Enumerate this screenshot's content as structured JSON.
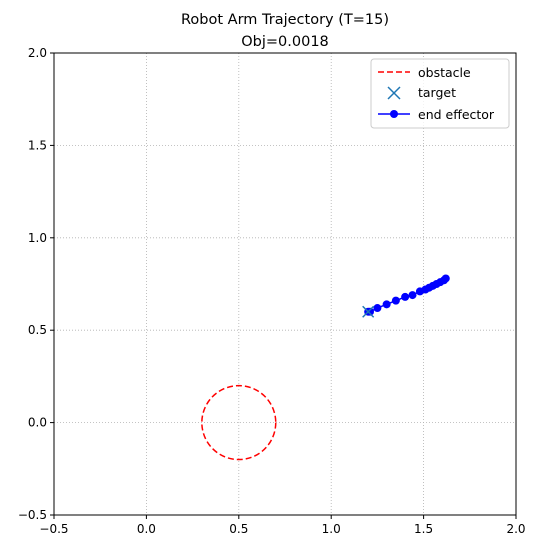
{
  "chart_data": {
    "type": "line",
    "title": "Robot Arm Trajectory (T=15)",
    "subtitle": "Obj=0.0018",
    "xlabel": "",
    "ylabel": "",
    "xlim": [
      -0.5,
      2.0
    ],
    "ylim": [
      -0.5,
      2.0
    ],
    "xticks": [
      -0.5,
      0.0,
      0.5,
      1.0,
      1.5,
      2.0
    ],
    "yticks": [
      -0.5,
      0.0,
      0.5,
      1.0,
      1.5,
      2.0
    ],
    "tick_labels": [
      "−0.5",
      "0.0",
      "0.5",
      "1.0",
      "1.5",
      "2.0"
    ],
    "grid": true,
    "legend_position": "top-right",
    "obstacle": {
      "center": [
        0.5,
        0.0
      ],
      "radius": 0.2,
      "color": "#ff0000",
      "style": "dashed"
    },
    "target": {
      "x": 1.2,
      "y": 0.6,
      "color": "#1f77b4",
      "marker": "x"
    },
    "end_effector": {
      "color": "#0000ff",
      "x": [
        1.62,
        1.61,
        1.59,
        1.57,
        1.55,
        1.53,
        1.51,
        1.48,
        1.44,
        1.4,
        1.35,
        1.3,
        1.25,
        1.21,
        1.2
      ],
      "y": [
        0.78,
        0.77,
        0.76,
        0.75,
        0.74,
        0.73,
        0.72,
        0.71,
        0.69,
        0.68,
        0.66,
        0.64,
        0.62,
        0.6,
        0.6
      ]
    },
    "legend": [
      {
        "label": "obstacle",
        "kind": "dashed-line"
      },
      {
        "label": "target",
        "kind": "x-marker"
      },
      {
        "label": "end effector",
        "kind": "line-marker"
      }
    ]
  }
}
